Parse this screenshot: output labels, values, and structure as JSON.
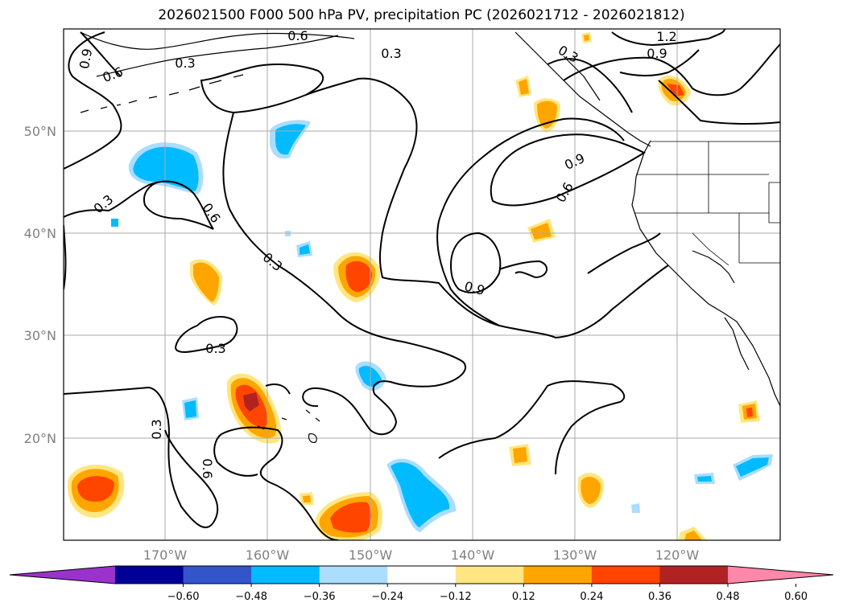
{
  "title": "2026021500 F000 500 hPa PV, precipitation PC (2026021712 - 2026021812)",
  "lon_ticks": [
    "170°W",
    "160°W",
    "150°W",
    "140°W",
    "130°W",
    "120°W"
  ],
  "lat_ticks": [
    "50°N",
    "40°N",
    "30°N",
    "20°N"
  ],
  "contour_labels": [
    "0.6",
    "0.9",
    "0.6",
    "0.3",
    "0.3",
    "1.2",
    "0.9",
    "0.3",
    "0.9",
    "0.6",
    "0.3",
    "0.6",
    "0.3",
    "0.9",
    "0.3",
    "0.3",
    "0.6"
  ],
  "colorbar": {
    "ticks": [
      "−0.60",
      "−0.48",
      "−0.36",
      "−0.24",
      "−0.12",
      "0.12",
      "0.24",
      "0.36",
      "0.48",
      "0.60"
    ],
    "colors": [
      "#9933cc",
      "#000099",
      "#3355cc",
      "#00bbff",
      "#aaddff",
      "#ffffff",
      "#ffe680",
      "#ffa500",
      "#ff4500",
      "#b22222",
      "#ff88aa"
    ]
  }
}
